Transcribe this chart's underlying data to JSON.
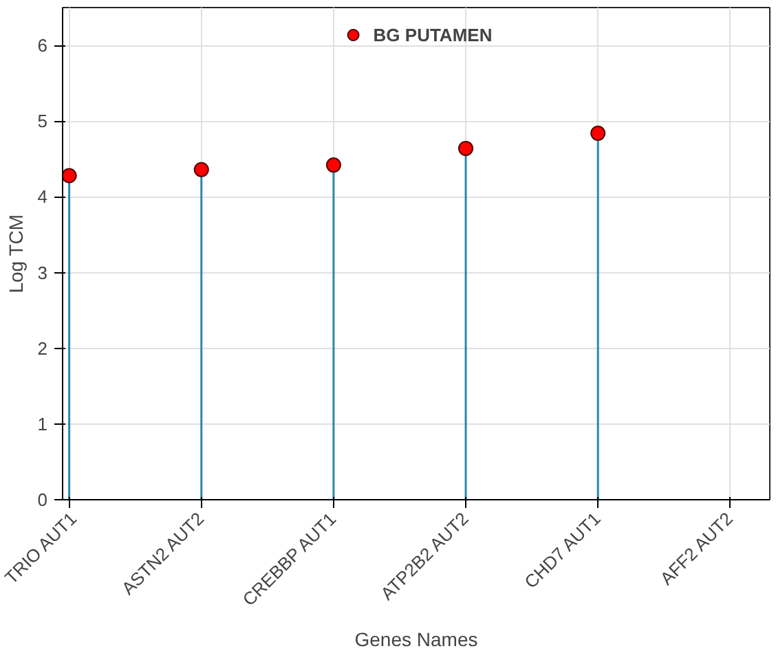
{
  "chart_data": {
    "type": "lollipop",
    "xlabel": "Genes Names",
    "ylabel": "Log TCM",
    "categories": [
      "TRIO AUT1",
      "ASTN2 AUT2",
      "CREBBP AUT1",
      "ATP2B2 AUT2",
      "CHD7 AUT1",
      "AFF2 AUT2"
    ],
    "series": [
      {
        "name": "BG PUTAMEN",
        "color": "#ff0000",
        "values": [
          4.28,
          4.36,
          4.42,
          4.64,
          4.84,
          null
        ]
      }
    ],
    "ylim": [
      0,
      6.5
    ],
    "yticks": [
      0,
      1,
      2,
      3,
      4,
      5,
      6
    ],
    "grid": true,
    "legend": "top",
    "marker": "circle"
  }
}
